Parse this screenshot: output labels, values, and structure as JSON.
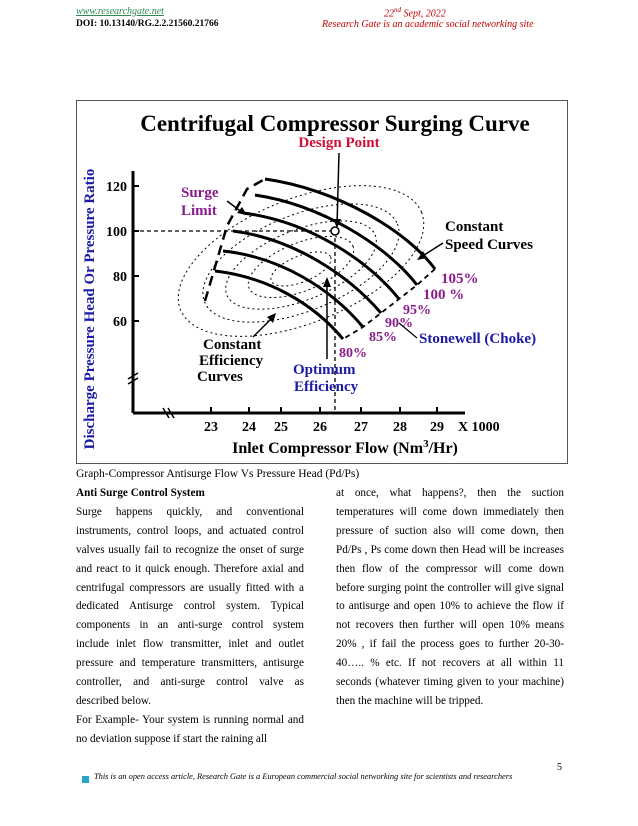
{
  "header": {
    "site": "www.researchgate.net",
    "doi": "DOI: 10.13140/RG.2.2.21560.21766",
    "date_day": "22",
    "date_sup": "nd",
    "date_rest": " Sept, 2022",
    "tagline": "Research Gate is an academic social networking site"
  },
  "figure": {
    "title": "Centrifugal Compressor Surging Curve",
    "design_point": "Design Point",
    "surge_limit": [
      "Surge",
      "Limit"
    ],
    "constant_speed": [
      "Constant",
      "Speed Curves"
    ],
    "stonewall": "Stonewell (Choke)",
    "constant_efficiency": [
      "Constant",
      "Efficiency",
      "Curves"
    ],
    "optimum_efficiency": [
      "Optimum",
      "Efficiency"
    ],
    "ylabel": "Discharge Pressure Head Or Pressure Ratio",
    "xlabel_main": "Inlet Compressor Flow (Nm",
    "xlabel_sup": "3",
    "xlabel_end": "/Hr)",
    "x_multiplier": "X 1000",
    "speed_labels": [
      "105%",
      "100 %",
      "95%",
      "90%",
      "85%",
      "80%"
    ],
    "colors": {
      "red": "#d0103a",
      "blue": "#1a1aa6",
      "purple": "#8b1a8b",
      "ink": "#000000"
    }
  },
  "chart_data": {
    "type": "line",
    "title": "Centrifugal Compressor Surging Curve",
    "xlabel": "Inlet Compressor Flow (Nm3/Hr) X 1000",
    "ylabel": "Discharge Pressure Head Or Pressure Ratio",
    "x_ticks": [
      "23",
      "24",
      "25",
      "26",
      "27",
      "28",
      "29"
    ],
    "y_ticks": [
      "60",
      "80",
      "100",
      "120"
    ],
    "series": [
      {
        "name": "105%",
        "x": [
          25.5,
          27,
          28.5,
          29.6
        ],
        "y": [
          125,
          113,
          97,
          80
        ]
      },
      {
        "name": "100 %",
        "x": [
          25.2,
          27,
          28.3,
          29.2
        ],
        "y": [
          117,
          100,
          85,
          72
        ]
      },
      {
        "name": "95%",
        "x": [
          24.8,
          26.5,
          27.8,
          28.6
        ],
        "y": [
          108,
          93,
          78,
          65
        ]
      },
      {
        "name": "90%",
        "x": [
          24.5,
          26,
          27.3,
          28.1
        ],
        "y": [
          98,
          83,
          70,
          60
        ]
      },
      {
        "name": "85%",
        "x": [
          24.1,
          25.5,
          26.7,
          27.5
        ],
        "y": [
          88,
          75,
          63,
          55
        ]
      },
      {
        "name": "80%",
        "x": [
          23.7,
          25,
          26.1,
          26.8
        ],
        "y": [
          78,
          66,
          56,
          50
        ]
      }
    ],
    "design_point": {
      "x": 27,
      "y": 100
    }
  },
  "caption": "Graph-Compressor Antisurge Flow Vs Pressure Head (Pd/Ps)",
  "left_col": {
    "heading": "Anti Surge Control System",
    "p1": "Surge happens quickly, and conventional instruments, control loops, and actuated control valves usually fail to recognize the onset of surge and react to it quick enough. Therefore axial and centrifugal compressors are usually fitted with a dedicated Antisurge control system. Typical components in an anti-surge control system include inlet flow transmitter, inlet and outlet pressure and temperature transmitters, antisurge controller, and anti-surge control valve as described below.",
    "p2": "For Example- Your system is running normal and no deviation suppose if start the raining all"
  },
  "right_col": {
    "p1": "at once, what happens?, then the suction temperatures will come down immediately then pressure of suction also will come down, then Pd/Ps , Ps come down then Head will be increases then flow of the compressor will come down before surging point the controller will give signal to antisurge and open 10% to achieve the flow if not recovers then further will open 10% means 20% , if fail the process goes to further 20-30-40….. % etc. If not recovers at all within 11 seconds (whatever timing given to your machine) then the machine will be tripped."
  },
  "page_number": "5",
  "footer": "This is an open access article, Research Gate is a European commercial social networking site for scientists and researchers"
}
